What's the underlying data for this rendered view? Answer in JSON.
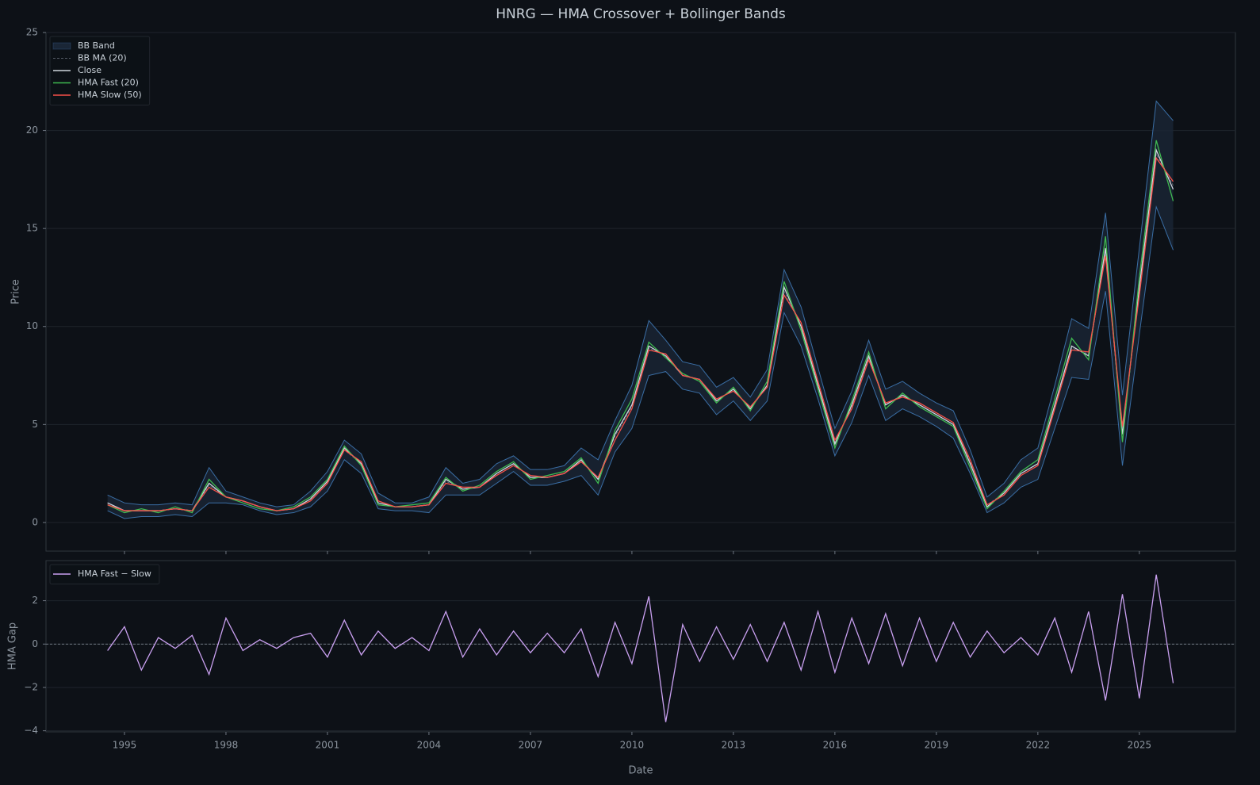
{
  "chart_data": [
    {
      "type": "line",
      "title": "HNRG — HMA Crossover + Bollinger Bands",
      "ylabel": "Price",
      "x": [
        1994.5,
        1995,
        1995.5,
        1996,
        1996.5,
        1997,
        1997.5,
        1998,
        1998.5,
        1999,
        1999.5,
        2000,
        2000.5,
        2001,
        2001.5,
        2002,
        2002.5,
        2003,
        2003.5,
        2004,
        2004.5,
        2005,
        2005.5,
        2006,
        2006.5,
        2007,
        2007.5,
        2008,
        2008.5,
        2009,
        2009.5,
        2010,
        2010.5,
        2011,
        2011.5,
        2012,
        2012.5,
        2013,
        2013.5,
        2014,
        2014.5,
        2015,
        2015.5,
        2016,
        2016.5,
        2017,
        2017.5,
        2018,
        2018.5,
        2019,
        2019.5,
        2020,
        2020.5,
        2021,
        2021.5,
        2022,
        2022.5,
        2023,
        2023.5,
        2024,
        2024.5,
        2025,
        2025.5,
        2026
      ],
      "xlim": [
        1992.68,
        2027.84
      ],
      "ylim": [
        -1.46,
        25
      ],
      "yticks": [
        0,
        5,
        10,
        15,
        20,
        25
      ],
      "grid": true,
      "legend": "upper left",
      "series": [
        {
          "name": "BB Band",
          "color": "#1a2636",
          "edge_color": "#3a6ea5",
          "upper": [
            1.4,
            1.0,
            0.9,
            0.9,
            1.0,
            0.9,
            2.8,
            1.6,
            1.3,
            1.0,
            0.8,
            0.9,
            1.6,
            2.6,
            4.2,
            3.5,
            1.5,
            1.0,
            1.0,
            1.3,
            2.8,
            2.0,
            2.2,
            3.0,
            3.4,
            2.7,
            2.7,
            2.9,
            3.8,
            3.2,
            5.2,
            7.0,
            10.3,
            9.3,
            8.2,
            8.0,
            6.9,
            7.4,
            6.4,
            7.8,
            12.9,
            11.0,
            7.9,
            4.8,
            6.7,
            9.3,
            6.8,
            7.2,
            6.6,
            6.1,
            5.7,
            3.7,
            1.3,
            2.0,
            3.2,
            3.8,
            7.0,
            10.4,
            9.9,
            15.8,
            6.5,
            14.0,
            21.5,
            20.5
          ],
          "lower": [
            0.6,
            0.2,
            0.3,
            0.3,
            0.4,
            0.3,
            1.0,
            1.0,
            0.9,
            0.6,
            0.4,
            0.5,
            0.8,
            1.6,
            3.2,
            2.5,
            0.7,
            0.6,
            0.6,
            0.5,
            1.4,
            1.4,
            1.4,
            2.0,
            2.6,
            1.9,
            1.9,
            2.1,
            2.4,
            1.4,
            3.6,
            4.8,
            7.5,
            7.7,
            6.8,
            6.6,
            5.5,
            6.2,
            5.2,
            6.2,
            10.7,
            9.0,
            6.3,
            3.4,
            5.1,
            7.5,
            5.2,
            5.8,
            5.4,
            4.9,
            4.3,
            2.5,
            0.5,
            1.0,
            1.8,
            2.2,
            4.8,
            7.4,
            7.3,
            11.8,
            2.9,
            9.6,
            16.1,
            13.9
          ]
        },
        {
          "name": "BB MA (20)",
          "color": "#6e7681",
          "dash": true,
          "values": [
            1.0,
            0.6,
            0.6,
            0.6,
            0.7,
            0.6,
            1.9,
            1.3,
            1.1,
            0.8,
            0.6,
            0.7,
            1.2,
            2.1,
            3.7,
            3.0,
            1.1,
            0.8,
            0.8,
            0.9,
            2.1,
            1.7,
            1.8,
            2.5,
            3.0,
            2.3,
            2.3,
            2.5,
            3.1,
            2.3,
            4.4,
            5.9,
            8.9,
            8.5,
            7.5,
            7.3,
            6.2,
            6.8,
            5.8,
            7.0,
            11.8,
            10.0,
            7.1,
            4.1,
            5.9,
            8.4,
            6.0,
            6.5,
            6.0,
            5.5,
            5.0,
            3.1,
            0.9,
            1.5,
            2.5,
            3.0,
            5.9,
            8.9,
            8.6,
            13.8,
            4.7,
            11.8,
            18.8,
            17.2
          ]
        },
        {
          "name": "Close",
          "color": "#d0d7de",
          "values": [
            1.0,
            0.6,
            0.6,
            0.6,
            0.7,
            0.6,
            2.0,
            1.3,
            1.1,
            0.8,
            0.6,
            0.7,
            1.2,
            2.1,
            3.8,
            3.0,
            1.0,
            0.8,
            0.8,
            0.9,
            2.2,
            1.7,
            1.8,
            2.5,
            3.0,
            2.3,
            2.3,
            2.5,
            3.2,
            2.2,
            4.5,
            6.0,
            9.0,
            8.5,
            7.5,
            7.3,
            6.2,
            6.8,
            5.8,
            7.0,
            12.0,
            10.0,
            7.0,
            4.0,
            6.0,
            8.5,
            6.0,
            6.5,
            6.0,
            5.5,
            5.0,
            3.0,
            0.8,
            1.5,
            2.5,
            3.0,
            6.0,
            9.0,
            8.5,
            14.0,
            4.5,
            12.0,
            19.0,
            17.0
          ]
        },
        {
          "name": "HMA Fast (20)",
          "color": "#3fb950",
          "values": [
            0.9,
            0.5,
            0.7,
            0.5,
            0.8,
            0.5,
            2.2,
            1.3,
            1.0,
            0.7,
            0.6,
            0.8,
            1.3,
            2.2,
            3.9,
            2.9,
            0.9,
            0.8,
            0.9,
            1.0,
            2.3,
            1.6,
            1.9,
            2.6,
            3.1,
            2.2,
            2.4,
            2.6,
            3.3,
            2.0,
            4.7,
            6.3,
            9.2,
            8.4,
            7.6,
            7.2,
            6.1,
            6.9,
            5.7,
            7.2,
            12.3,
            9.8,
            6.8,
            3.8,
            6.2,
            8.7,
            5.8,
            6.6,
            5.9,
            5.4,
            4.9,
            2.8,
            0.7,
            1.6,
            2.6,
            3.2,
            6.3,
            9.4,
            8.3,
            14.6,
            4.1,
            12.5,
            19.5,
            16.4
          ]
        },
        {
          "name": "HMA Slow (50)",
          "color": "#f85149",
          "values": [
            0.9,
            0.6,
            0.6,
            0.6,
            0.7,
            0.6,
            1.8,
            1.3,
            1.1,
            0.8,
            0.6,
            0.7,
            1.1,
            2.0,
            3.7,
            3.1,
            1.1,
            0.8,
            0.8,
            0.9,
            2.0,
            1.8,
            1.8,
            2.4,
            2.9,
            2.4,
            2.3,
            2.5,
            3.1,
            2.3,
            4.2,
            5.8,
            8.8,
            8.6,
            7.5,
            7.3,
            6.3,
            6.7,
            5.9,
            6.9,
            11.6,
            10.2,
            7.2,
            4.2,
            5.8,
            8.3,
            6.1,
            6.4,
            6.1,
            5.6,
            5.1,
            3.2,
            0.9,
            1.4,
            2.4,
            2.9,
            5.8,
            8.8,
            8.7,
            13.6,
            4.9,
            11.6,
            18.6,
            17.4
          ]
        }
      ]
    },
    {
      "type": "line",
      "ylabel": "HMA Gap",
      "xlabel": "Date",
      "x": [
        1994.5,
        1995,
        1995.5,
        1996,
        1996.5,
        1997,
        1997.5,
        1998,
        1998.5,
        1999,
        1999.5,
        2000,
        2000.5,
        2001,
        2001.5,
        2002,
        2002.5,
        2003,
        2003.5,
        2004,
        2004.5,
        2005,
        2005.5,
        2006,
        2006.5,
        2007,
        2007.5,
        2008,
        2008.5,
        2009,
        2009.5,
        2010,
        2010.5,
        2011,
        2011.5,
        2012,
        2012.5,
        2013,
        2013.5,
        2014,
        2014.5,
        2015,
        2015.5,
        2016,
        2016.5,
        2017,
        2017.5,
        2018,
        2018.5,
        2019,
        2019.5,
        2020,
        2020.5,
        2021,
        2021.5,
        2022,
        2022.5,
        2023,
        2023.5,
        2024,
        2024.5,
        2025,
        2025.5,
        2026
      ],
      "xlim": [
        1992.68,
        2027.84
      ],
      "xticks": [
        1995,
        1998,
        2001,
        2004,
        2007,
        2010,
        2013,
        2016,
        2019,
        2022,
        2025
      ],
      "ylim": [
        -4.05,
        3.85
      ],
      "yticks": [
        {
          "value": -4,
          "label": "−4"
        },
        {
          "value": -2,
          "label": "−2"
        },
        0,
        2
      ],
      "grid": true,
      "legend": "upper left",
      "hline": 0,
      "series": [
        {
          "name": "HMA Fast − Slow",
          "color": "#c9a0f0",
          "values": [
            -0.3,
            0.8,
            -1.2,
            0.3,
            -0.2,
            0.4,
            -1.4,
            1.2,
            -0.3,
            0.2,
            -0.2,
            0.3,
            0.5,
            -0.6,
            1.1,
            -0.5,
            0.6,
            -0.2,
            0.3,
            -0.3,
            1.5,
            -0.6,
            0.7,
            -0.5,
            0.6,
            -0.4,
            0.5,
            -0.4,
            0.7,
            -1.5,
            1.0,
            -0.9,
            2.2,
            -3.6,
            0.9,
            -0.8,
            0.8,
            -0.7,
            0.9,
            -0.8,
            1.0,
            -1.2,
            1.5,
            -1.3,
            1.2,
            -0.9,
            1.4,
            -1.0,
            1.2,
            -0.8,
            1.0,
            -0.6,
            0.6,
            -0.4,
            0.3,
            -0.5,
            1.2,
            -1.3,
            1.5,
            -2.6,
            2.3,
            -2.5,
            3.2,
            -1.8
          ]
        }
      ]
    }
  ]
}
